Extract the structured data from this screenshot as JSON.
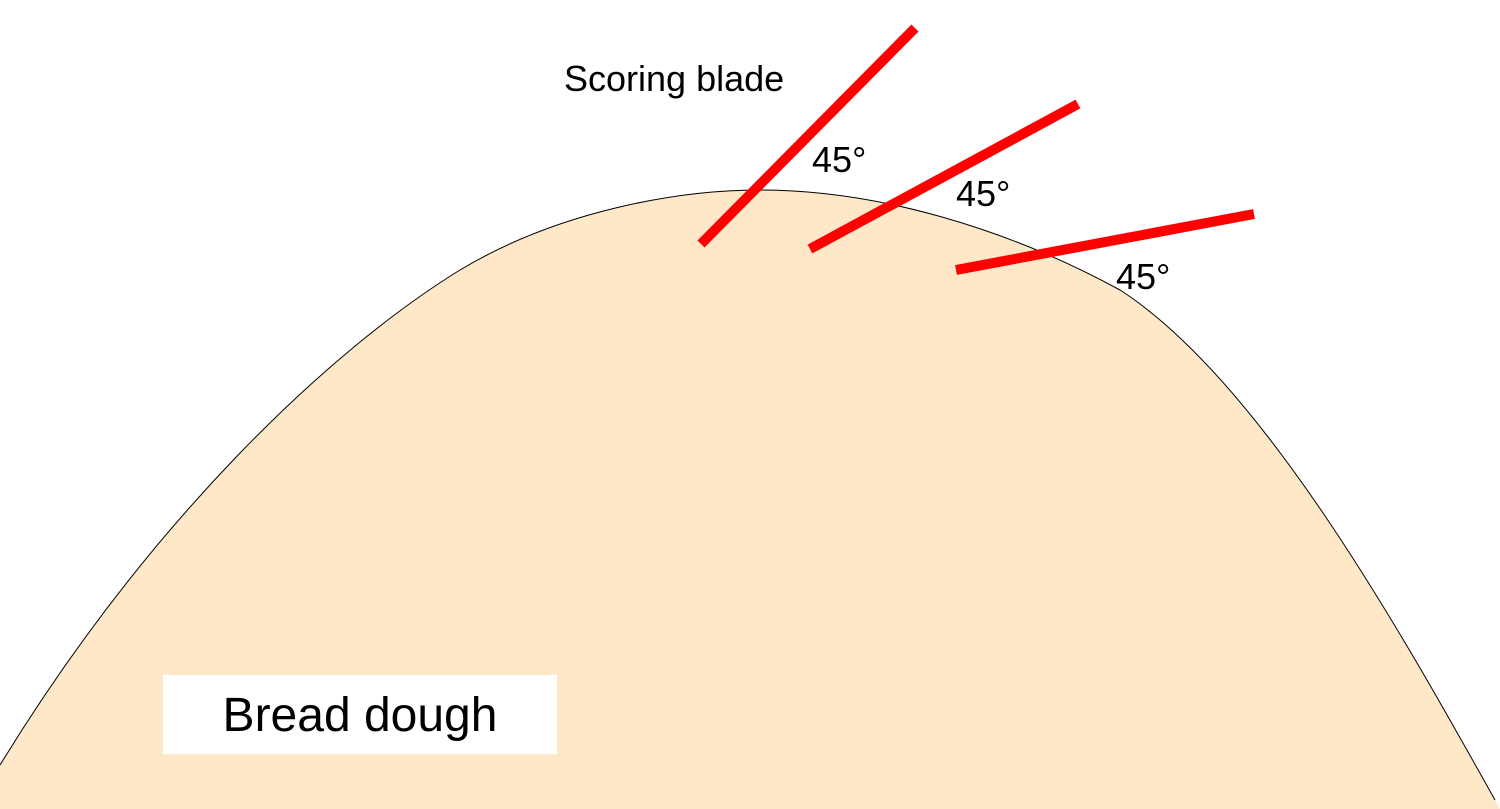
{
  "labels": {
    "blade": "Scoring blade",
    "angles": [
      "45°",
      "45°",
      "45°"
    ],
    "dough": "Bread dough"
  },
  "colors": {
    "blade": "#ff0000",
    "dough_fill": "#fee8c8",
    "dough_outline": "#000000",
    "label_box": "#ffffff"
  }
}
